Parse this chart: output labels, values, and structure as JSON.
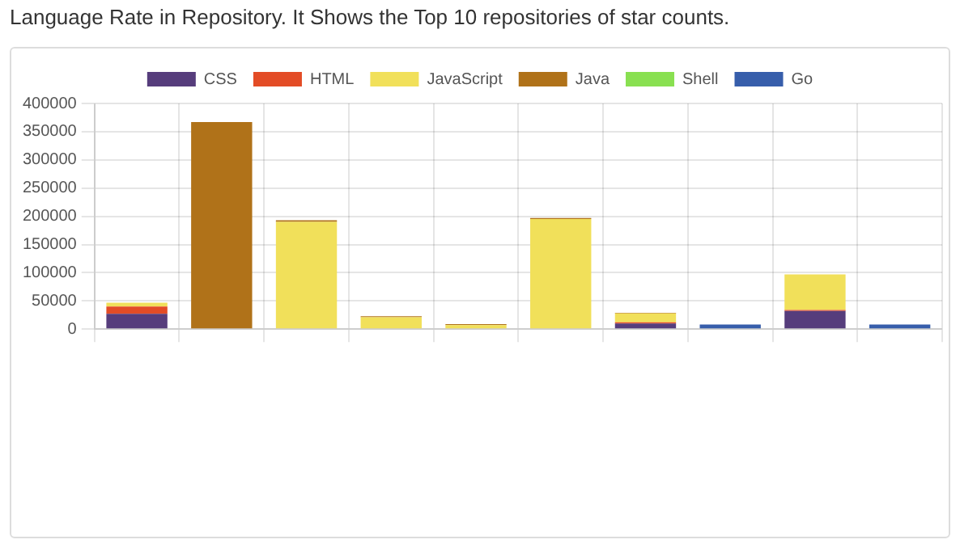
{
  "chart_data": {
    "type": "bar",
    "title": "Language Rate in Repository. It Shows the Top 10 repositories of star counts.",
    "stacked": true,
    "categories": [
      null,
      null,
      null,
      null,
      null,
      null,
      null,
      null,
      null,
      null
    ],
    "series": [
      {
        "name": "CSS",
        "color": "#563d7c",
        "values": [
          27000,
          0,
          0,
          0,
          0,
          0,
          10000,
          0,
          32000,
          0
        ]
      },
      {
        "name": "HTML",
        "color": "#e34c26",
        "values": [
          13000,
          0,
          0,
          0,
          0,
          0,
          2000,
          0,
          2000,
          0
        ]
      },
      {
        "name": "JavaScript",
        "color": "#f1e05a",
        "values": [
          7000,
          0,
          190000,
          21000,
          7000,
          195000,
          16000,
          0,
          63000,
          0
        ]
      },
      {
        "name": "Java",
        "color": "#b07219",
        "values": [
          0,
          367000,
          3000,
          2000,
          2000,
          2000,
          1000,
          0,
          0,
          0
        ]
      },
      {
        "name": "Shell",
        "color": "#89e051",
        "values": [
          0,
          0,
          0,
          0,
          0,
          0,
          0,
          0,
          0,
          0
        ]
      },
      {
        "name": "Go",
        "color": "#375eab",
        "values": [
          0,
          0,
          0,
          0,
          0,
          0,
          0,
          8000,
          0,
          8000
        ]
      }
    ],
    "ylim": [
      0,
      400000
    ],
    "yticks": [
      0,
      50000,
      100000,
      150000,
      200000,
      250000,
      300000,
      350000,
      400000
    ],
    "grid": true,
    "legend": "top"
  }
}
